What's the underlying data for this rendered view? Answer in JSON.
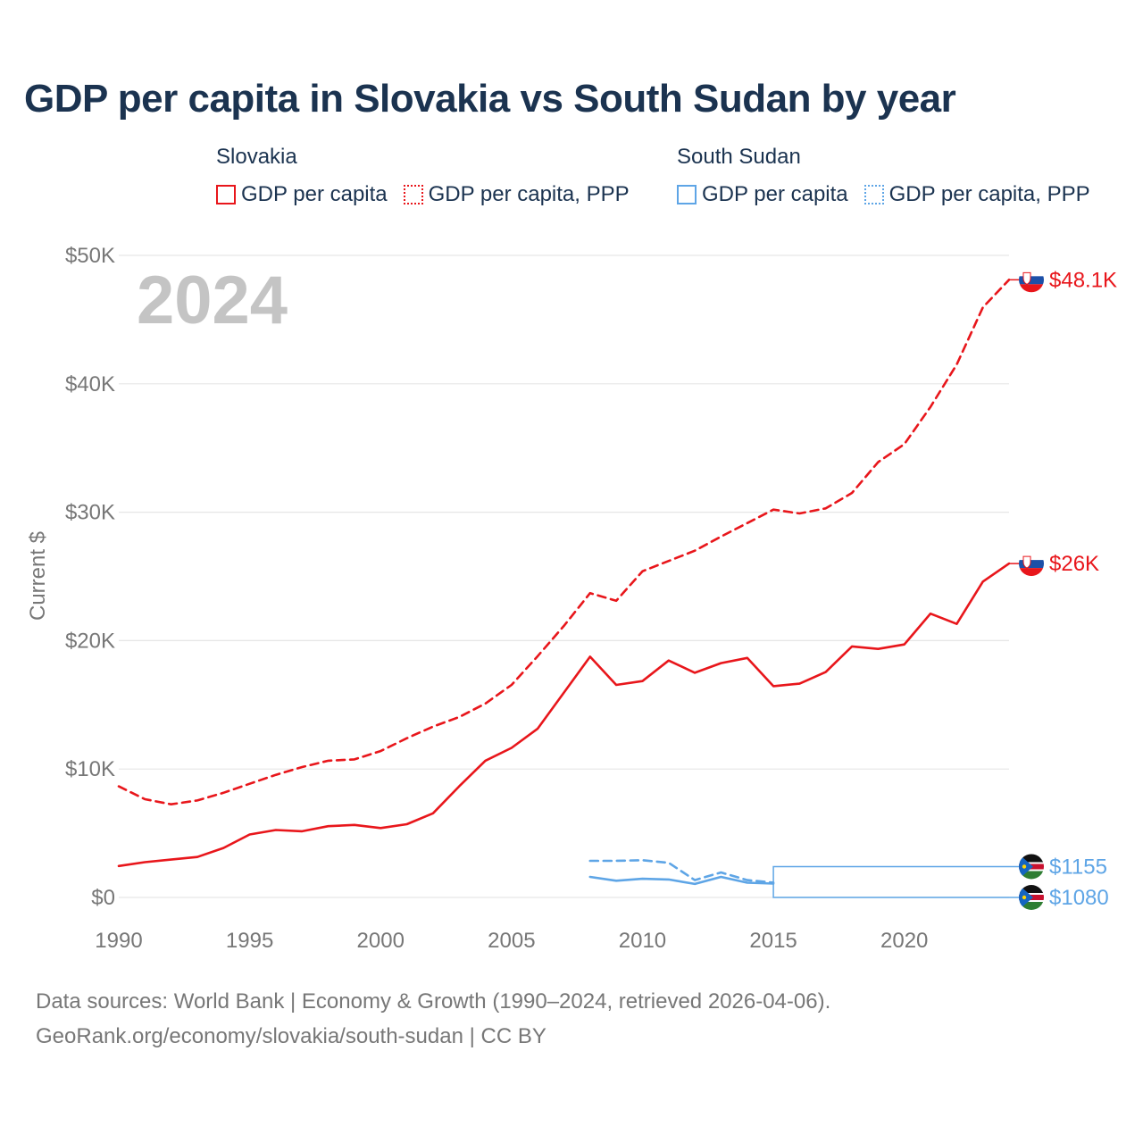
{
  "title": "GDP per capita in Slovakia vs South Sudan by year",
  "legend": {
    "groups": [
      {
        "country": "Slovakia",
        "items": [
          "GDP per capita",
          "GDP per capita, PPP"
        ],
        "color": "#e8161b"
      },
      {
        "country": "South Sudan",
        "items": [
          "GDP per capita",
          "GDP per capita, PPP"
        ],
        "color": "#5ea5e6"
      }
    ]
  },
  "source": {
    "line1": "Data sources: World Bank | Economy & Growth (1990–2024, retrieved 2026-04-06).",
    "line2": "GeoRank.org/economy/slovakia/south-sudan | CC BY"
  },
  "chart_data": {
    "type": "line",
    "title": "GDP per capita in Slovakia vs South Sudan by year",
    "year_label": "2024",
    "xlabel": "",
    "ylabel": "Current $",
    "xlim": [
      1990,
      2024
    ],
    "ylim": [
      0,
      50000
    ],
    "x_ticks": [
      1990,
      1995,
      2000,
      2005,
      2010,
      2015,
      2020
    ],
    "y_ticks": [
      0,
      10000,
      20000,
      30000,
      40000,
      50000
    ],
    "y_tick_labels": [
      "$0",
      "$10K",
      "$20K",
      "$30K",
      "$40K",
      "$50K"
    ],
    "grid": true,
    "series": [
      {
        "name": "Slovakia GDP per capita",
        "country": "Slovakia",
        "color": "#e8161b",
        "dashed": false,
        "end_label": "$26K",
        "x": [
          1990,
          1991,
          1992,
          1993,
          1994,
          1995,
          1996,
          1997,
          1998,
          1999,
          2000,
          2001,
          2002,
          2003,
          2004,
          2005,
          2006,
          2007,
          2008,
          2009,
          2010,
          2011,
          2012,
          2013,
          2014,
          2015,
          2016,
          2017,
          2018,
          2019,
          2020,
          2021,
          2022,
          2023,
          2024
        ],
        "values": [
          2450,
          2750,
          2950,
          3150,
          3850,
          4900,
          5250,
          5150,
          5550,
          5650,
          5400,
          5700,
          6550,
          8650,
          10650,
          11650,
          13150,
          15950,
          18750,
          16550,
          16850,
          18450,
          17500,
          18250,
          18650,
          16450,
          16650,
          17550,
          19550,
          19350,
          19700,
          22100,
          21300,
          24600,
          26000
        ]
      },
      {
        "name": "Slovakia GDP per capita, PPP",
        "country": "Slovakia",
        "color": "#e8161b",
        "dashed": true,
        "end_label": "$48.1K",
        "x": [
          1990,
          1991,
          1992,
          1993,
          1994,
          1995,
          1996,
          1997,
          1998,
          1999,
          2000,
          2001,
          2002,
          2003,
          2004,
          2005,
          2006,
          2007,
          2008,
          2009,
          2010,
          2011,
          2012,
          2013,
          2014,
          2015,
          2016,
          2017,
          2018,
          2019,
          2020,
          2021,
          2022,
          2023,
          2024
        ],
        "values": [
          8650,
          7650,
          7250,
          7550,
          8150,
          8850,
          9550,
          10150,
          10650,
          10750,
          11400,
          12400,
          13300,
          14050,
          15100,
          16550,
          18800,
          21150,
          23700,
          23100,
          25400,
          26200,
          27000,
          28100,
          29150,
          30200,
          29900,
          30300,
          31500,
          33900,
          35300,
          38200,
          41500,
          45950,
          48100
        ]
      },
      {
        "name": "South Sudan GDP per capita",
        "country": "South Sudan",
        "color": "#5ea5e6",
        "dashed": false,
        "end_label": "$1080",
        "x": [
          2008,
          2009,
          2010,
          2011,
          2012,
          2013,
          2014,
          2015
        ],
        "values": [
          1600,
          1300,
          1450,
          1400,
          1050,
          1600,
          1150,
          1080
        ]
      },
      {
        "name": "South Sudan GDP per capita, PPP",
        "country": "South Sudan",
        "color": "#5ea5e6",
        "dashed": true,
        "end_label": "$1155",
        "x": [
          2008,
          2009,
          2010,
          2011,
          2012,
          2013,
          2014,
          2015
        ],
        "values": [
          2850,
          2850,
          2900,
          2700,
          1350,
          1950,
          1350,
          1155
        ]
      }
    ]
  }
}
